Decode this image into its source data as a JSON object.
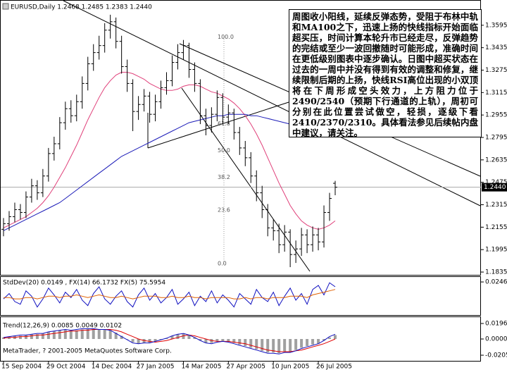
{
  "chart_data": [
    {
      "type": "ohlc",
      "title": "EURUSD,Daily  1.2468 1.2485 1.2383 1.2440",
      "color": "#000000",
      "categories": [
        "15 Sep 2004",
        null,
        null,
        null,
        null,
        null,
        null,
        null,
        "29 Oct 2004",
        null,
        null,
        null,
        null,
        null,
        null,
        null,
        "14 Dec 2004",
        null,
        null,
        null,
        null,
        null,
        null,
        null,
        "27 Jan 2005",
        null,
        null,
        null,
        null,
        null,
        null,
        null,
        "14 Mar 2005",
        null,
        null,
        null,
        null,
        null,
        null,
        null,
        "27 Apr 2005",
        null,
        null,
        null,
        null,
        null,
        null,
        null,
        "10 Jun 2005",
        null,
        null,
        null,
        null,
        null,
        null,
        null,
        "26 Jul 2005",
        null,
        null,
        null
      ],
      "open": [
        1.214,
        1.218,
        1.223,
        1.228,
        1.226,
        1.237,
        1.245,
        1.24,
        1.252,
        1.268,
        1.275,
        1.29,
        1.3,
        1.295,
        1.305,
        1.318,
        1.332,
        1.34,
        1.345,
        1.356,
        1.362,
        1.348,
        1.33,
        1.318,
        1.298,
        1.303,
        1.309,
        1.296,
        1.305,
        1.315,
        1.32,
        1.333,
        1.34,
        1.345,
        1.328,
        1.318,
        1.295,
        1.288,
        1.296,
        1.308,
        1.294,
        1.297,
        1.283,
        1.272,
        1.265,
        1.252,
        1.24,
        1.228,
        1.215,
        1.213,
        1.203,
        1.212,
        1.196,
        1.2,
        1.21,
        1.203,
        1.21,
        1.205,
        1.226,
        1.2468
      ],
      "high": [
        1.222,
        1.227,
        1.233,
        1.232,
        1.241,
        1.25,
        1.249,
        1.257,
        1.272,
        1.28,
        1.294,
        1.305,
        1.306,
        1.31,
        1.323,
        1.337,
        1.346,
        1.352,
        1.361,
        1.367,
        1.365,
        1.352,
        1.335,
        1.321,
        1.309,
        1.314,
        1.312,
        1.31,
        1.32,
        1.326,
        1.338,
        1.346,
        1.349,
        1.347,
        1.333,
        1.321,
        1.3,
        1.301,
        1.313,
        1.311,
        1.303,
        1.3,
        1.287,
        1.277,
        1.269,
        1.256,
        1.245,
        1.232,
        1.221,
        1.218,
        1.217,
        1.214,
        1.206,
        1.215,
        1.214,
        1.216,
        1.215,
        1.231,
        1.24,
        1.2485
      ],
      "low": [
        1.209,
        1.213,
        1.219,
        1.221,
        1.222,
        1.233,
        1.235,
        1.237,
        1.248,
        1.263,
        1.271,
        1.285,
        1.29,
        1.291,
        1.3,
        1.313,
        1.327,
        1.335,
        1.34,
        1.35,
        1.343,
        1.325,
        1.312,
        1.284,
        1.292,
        1.298,
        1.29,
        1.291,
        1.3,
        1.31,
        1.316,
        1.328,
        1.335,
        1.322,
        1.312,
        1.289,
        1.281,
        1.283,
        1.291,
        1.289,
        1.289,
        1.278,
        1.267,
        1.259,
        1.247,
        1.234,
        1.222,
        1.209,
        1.206,
        1.197,
        1.198,
        1.187,
        1.19,
        1.195,
        1.197,
        1.198,
        1.199,
        1.201,
        1.22,
        1.2383
      ],
      "close": [
        1.218,
        1.223,
        1.228,
        1.226,
        1.237,
        1.245,
        1.24,
        1.252,
        1.268,
        1.275,
        1.29,
        1.3,
        1.295,
        1.305,
        1.318,
        1.332,
        1.34,
        1.345,
        1.356,
        1.362,
        1.348,
        1.33,
        1.318,
        1.298,
        1.303,
        1.309,
        1.296,
        1.305,
        1.315,
        1.32,
        1.333,
        1.34,
        1.345,
        1.328,
        1.318,
        1.295,
        1.288,
        1.296,
        1.308,
        1.294,
        1.297,
        1.283,
        1.272,
        1.265,
        1.252,
        1.24,
        1.228,
        1.215,
        1.213,
        1.203,
        1.212,
        1.196,
        1.2,
        1.21,
        1.203,
        1.21,
        1.205,
        1.226,
        1.236,
        1.244
      ],
      "overlays": [
        {
          "color": "#e0407a",
          "values": [
            1.215,
            1.217,
            1.219,
            1.221,
            1.223,
            1.226,
            1.229,
            1.233,
            1.238,
            1.244,
            1.251,
            1.258,
            1.266,
            1.274,
            1.283,
            1.292,
            1.3,
            1.308,
            1.315,
            1.32,
            1.324,
            1.326,
            1.326,
            1.325,
            1.323,
            1.321,
            1.318,
            1.316,
            1.314,
            1.313,
            1.313,
            1.314,
            1.316,
            1.317,
            1.317,
            1.316,
            1.314,
            1.312,
            1.311,
            1.309,
            1.307,
            1.304,
            1.3,
            1.295,
            1.289,
            1.282,
            1.274,
            1.265,
            1.256,
            1.247,
            1.239,
            1.231,
            1.225,
            1.22,
            1.217,
            1.215,
            1.214,
            1.215,
            1.217,
            1.22
          ]
        },
        {
          "color": "#1c1cb8",
          "values": [
            1.213,
            1.215,
            1.217,
            1.219,
            1.221,
            1.223,
            1.225,
            1.227,
            1.229,
            1.231,
            1.233,
            1.236,
            1.239,
            1.242,
            1.245,
            1.248,
            1.251,
            1.254,
            1.257,
            1.26,
            1.263,
            1.266,
            1.268,
            1.27,
            1.272,
            1.274,
            1.276,
            1.278,
            1.28,
            1.282,
            1.284,
            1.286,
            1.288,
            1.29,
            1.291,
            1.292,
            1.293,
            1.294,
            1.295,
            1.295,
            1.296,
            1.296,
            1.296,
            1.296,
            1.295,
            1.295,
            1.294,
            1.293,
            1.292,
            1.291,
            1.29,
            1.289,
            1.288,
            1.287,
            1.286,
            1.285,
            1.284,
            1.283,
            1.282,
            1.281
          ]
        }
      ],
      "ylim": [
        1.1815,
        1.377
      ],
      "yticks": [
        1.3595,
        1.3435,
        1.3275,
        1.3115,
        1.2955,
        1.2795,
        1.2635,
        1.2475,
        1.2315,
        1.2155,
        1.1995,
        1.1835
      ],
      "current_price": {
        "value": 1.244,
        "label": "1.2440"
      },
      "fib_range": [
        1.1895,
        1.351
      ],
      "fib_levels": [
        {
          "value": 100,
          "label": "100.0"
        },
        {
          "value": 61.8,
          "label": "61.8"
        },
        {
          "value": 50,
          "label": "50.0"
        },
        {
          "value": 38.2,
          "label": "38.2"
        },
        {
          "value": 23.6,
          "label": "23.6"
        },
        {
          "value": 0,
          "label": "0.0"
        }
      ],
      "annotation": "周图收小阳线，延续反弹态势，受阻于布林中轨和MA100之下，迅速上扬的快线指标开始面临超买压，时间计算本轮升市已经走尽，反弹趋势的完结或至少一波回撤随时可能形成，准确时间在更低级别图表中逐步确认。日图中超买状态在过去的一周中并没有得到有效的调整和修复，继续限制后期的上扬，快线RSI高位出现的小双顶将在下周形成空头效力，上方阻力位于2490/2540（预期下行通道的上轨），周初可分别在此位置尝试做空，轻损，逐级下看2410/2370/2310。具体看法参见后续帖内盘中建议，请关注。"
    },
    {
      "type": "line",
      "title": "StdDev(20) 0.0149 , FX(14) 66.1732 FX(5) 75.5954",
      "series": [
        {
          "color": "#1010c0",
          "values": [
            0.012,
            0.016,
            0.01,
            0.008,
            0.018,
            0.014,
            0.006,
            0.012,
            0.02,
            0.015,
            0.009,
            0.017,
            0.013,
            0.019,
            0.011,
            0.007,
            0.016,
            0.021,
            0.012,
            0.008,
            0.014,
            0.018,
            0.01,
            0.006,
            0.015,
            0.02,
            0.011,
            0.016,
            0.009,
            0.013,
            0.019,
            0.008,
            0.012,
            0.017,
            0.007,
            0.014,
            0.01,
            0.018,
            0.009,
            0.015,
            0.011,
            0.006,
            0.016,
            0.012,
            0.008,
            0.019,
            0.013,
            0.01,
            0.017,
            0.007,
            0.014,
            0.02,
            0.011,
            0.016,
            0.008,
            0.019,
            0.022,
            0.015,
            0.024,
            0.021
          ]
        },
        {
          "color": "#e06000",
          "values": [
            0.013,
            0.013,
            0.012,
            0.012,
            0.013,
            0.013,
            0.012,
            0.013,
            0.014,
            0.014,
            0.013,
            0.014,
            0.014,
            0.015,
            0.014,
            0.013,
            0.014,
            0.015,
            0.014,
            0.013,
            0.013,
            0.014,
            0.013,
            0.012,
            0.013,
            0.014,
            0.014,
            0.014,
            0.013,
            0.013,
            0.014,
            0.013,
            0.013,
            0.014,
            0.013,
            0.013,
            0.012,
            0.013,
            0.013,
            0.013,
            0.013,
            0.012,
            0.012,
            0.013,
            0.012,
            0.013,
            0.013,
            0.012,
            0.013,
            0.013,
            0.013,
            0.014,
            0.014,
            0.014,
            0.013,
            0.015,
            0.016,
            0.017,
            0.018,
            0.019
          ]
        }
      ],
      "ylim": [
        0,
        0.0283
      ],
      "yticks": [
        0.0246
      ]
    },
    {
      "type": "combo",
      "title": "Trend(12,26,9) 0.0085 0.0049 0.0102",
      "series": [
        {
          "kind": "bar",
          "color": "#a0a0a0",
          "values": [
            0.002,
            0.003,
            0.004,
            0.004,
            0.005,
            0.006,
            0.006,
            0.007,
            0.009,
            0.01,
            0.011,
            0.012,
            0.011,
            0.011,
            0.012,
            0.013,
            0.013,
            0.012,
            0.012,
            0.011,
            0.008,
            0.004,
            0.0,
            -0.004,
            -0.006,
            -0.005,
            -0.005,
            -0.003,
            -0.001,
            0.001,
            0.004,
            0.006,
            0.007,
            0.005,
            0.002,
            -0.002,
            -0.005,
            -0.005,
            -0.003,
            -0.003,
            -0.003,
            -0.005,
            -0.007,
            -0.009,
            -0.011,
            -0.013,
            -0.015,
            -0.017,
            -0.017,
            -0.018,
            -0.016,
            -0.016,
            -0.014,
            -0.011,
            -0.009,
            -0.007,
            -0.006,
            -0.002,
            0.002,
            0.005
          ]
        },
        {
          "kind": "line",
          "color": "#e00000",
          "values": [
            0.001,
            0.002,
            0.002,
            0.003,
            0.003,
            0.004,
            0.005,
            0.005,
            0.006,
            0.007,
            0.008,
            0.009,
            0.01,
            0.01,
            0.011,
            0.011,
            0.012,
            0.012,
            0.012,
            0.012,
            0.011,
            0.009,
            0.006,
            0.003,
            0.0,
            -0.002,
            -0.003,
            -0.004,
            -0.003,
            -0.002,
            0.0,
            0.002,
            0.004,
            0.005,
            0.004,
            0.002,
            0.0,
            -0.002,
            -0.003,
            -0.003,
            -0.003,
            -0.004,
            -0.005,
            -0.006,
            -0.008,
            -0.01,
            -0.012,
            -0.014,
            -0.015,
            -0.016,
            -0.016,
            -0.016,
            -0.015,
            -0.014,
            -0.012,
            -0.01,
            -0.008,
            -0.006,
            -0.003,
            0.0
          ]
        },
        {
          "kind": "line",
          "color": "#1010c0",
          "values": [
            0.002,
            0.003,
            0.004,
            0.005,
            0.005,
            0.006,
            0.007,
            0.007,
            0.009,
            0.01,
            0.011,
            0.012,
            0.011,
            0.012,
            0.013,
            0.013,
            0.013,
            0.012,
            0.012,
            0.011,
            0.007,
            0.003,
            -0.001,
            -0.005,
            -0.006,
            -0.005,
            -0.005,
            -0.003,
            -0.001,
            0.001,
            0.004,
            0.006,
            0.007,
            0.005,
            0.002,
            -0.002,
            -0.005,
            -0.006,
            -0.004,
            -0.003,
            -0.004,
            -0.006,
            -0.008,
            -0.01,
            -0.012,
            -0.014,
            -0.016,
            -0.018,
            -0.018,
            -0.019,
            -0.017,
            -0.017,
            -0.015,
            -0.012,
            -0.01,
            -0.008,
            -0.006,
            -0.002,
            0.003,
            0.006
          ]
        }
      ],
      "ylim": [
        -0.0276,
        0.0276
      ],
      "yticks": [
        0.0196,
        {
          "value": 0,
          "label": "0.0000"
        },
        -0.0205
      ],
      "copyright": "MetaTrader, ? 2001-2005 MetaQuotes Software Corp."
    }
  ]
}
